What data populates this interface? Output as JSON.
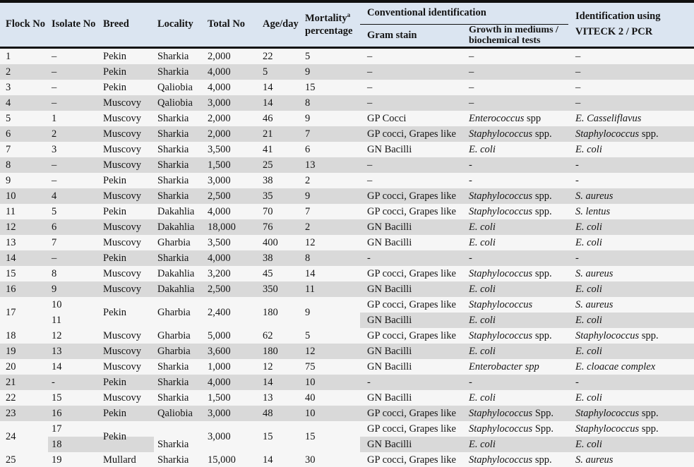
{
  "colors": {
    "header_bg": "#dbe5f1",
    "stripe_gray": "#d9d9d9",
    "row_bg": "#f6f6f6",
    "rule_black": "#101010"
  },
  "header": {
    "flock": "Flock No",
    "isolate": "Isolate No",
    "breed": "Breed",
    "locality": "Locality",
    "total": "Total No",
    "age": "Age/day",
    "mortality_word": "Mortality",
    "mortality_sup": "a",
    "mortality_line2": "percentage",
    "conventional": "Conventional identification",
    "gram": "Gram stain",
    "growth_line1": "Growth in mediums /",
    "growth_line2": "biochemical tests",
    "viteck_line1": "Identification using",
    "viteck_line2": "VITECK 2 / PCR"
  },
  "table": {
    "rows": [
      {
        "flock": "1",
        "isolate": "–",
        "breed": "Pekin",
        "locality": "Sharkia",
        "total": "2,000",
        "age": "22",
        "mortality": "5",
        "gram": "–",
        "growth": {
          "n": "–"
        },
        "viteck": {
          "n": "–"
        },
        "shade": false
      },
      {
        "flock": "2",
        "isolate": "–",
        "breed": "Pekin",
        "locality": "Sharkia",
        "total": "4,000",
        "age": "5",
        "mortality": "9",
        "gram": "–",
        "growth": {
          "n": "–"
        },
        "viteck": {
          "n": "–"
        },
        "shade": true
      },
      {
        "flock": "3",
        "isolate": "–",
        "breed": "Pekin",
        "locality": "Qaliobia",
        "total": "4,000",
        "age": "14",
        "mortality": "15",
        "gram": "–",
        "growth": {
          "n": "–"
        },
        "viteck": {
          "n": "–"
        },
        "shade": false
      },
      {
        "flock": "4",
        "isolate": "–",
        "breed": "Muscovy",
        "locality": "Qaliobia",
        "total": "3,000",
        "age": "14",
        "mortality": "8",
        "gram": "–",
        "growth": {
          "n": "–"
        },
        "viteck": {
          "n": "–"
        },
        "shade": true
      },
      {
        "flock": "5",
        "isolate": "1",
        "breed": "Muscovy",
        "locality": "Sharkia",
        "total": "2,000",
        "age": "46",
        "mortality": "9",
        "gram": "GP Cocci",
        "growth": {
          "i": "Enterococcus",
          "n": " spp"
        },
        "viteck": {
          "i": "E. Casseliflavus"
        },
        "shade": false
      },
      {
        "flock": "6",
        "isolate": "2",
        "breed": "Muscovy",
        "locality": "Sharkia",
        "total": "2,000",
        "age": "21",
        "mortality": "7",
        "gram": "GP cocci, Grapes like",
        "growth": {
          "i": "Staphylococcus",
          "n": " spp."
        },
        "viteck": {
          "i": "Staphylococcus",
          "n": " spp."
        },
        "shade": true
      },
      {
        "flock": "7",
        "isolate": "3",
        "breed": "Muscovy",
        "locality": "Sharkia",
        "total": "3,500",
        "age": "41",
        "mortality": "6",
        "gram": "GN Bacilli",
        "growth": {
          "i": "E. coli"
        },
        "viteck": {
          "i": "E. coli"
        },
        "shade": false
      },
      {
        "flock": "8",
        "isolate": "–",
        "breed": "Muscovy",
        "locality": "Sharkia",
        "total": "1,500",
        "age": "25",
        "mortality": "13",
        "gram": "–",
        "growth": {
          "n": "-"
        },
        "viteck": {
          "n": "-"
        },
        "shade": true
      },
      {
        "flock": "9",
        "isolate": "–",
        "breed": "Pekin",
        "locality": "Sharkia",
        "total": "3,000",
        "age": "38",
        "mortality": "2",
        "gram": "–",
        "growth": {
          "n": "-"
        },
        "viteck": {
          "n": "-"
        },
        "shade": false
      },
      {
        "flock": "10",
        "isolate": "4",
        "breed": "Muscovy",
        "locality": "Sharkia",
        "total": "2,500",
        "age": "35",
        "mortality": "9",
        "gram": "GP cocci, Grapes like",
        "growth": {
          "i": "Staphylococcus",
          "n": " spp."
        },
        "viteck": {
          "i": "S. aureus"
        },
        "shade": true
      },
      {
        "flock": "11",
        "isolate": "5",
        "breed": "Pekin",
        "locality": "Dakahlia",
        "total": "4,000",
        "age": "70",
        "mortality": "7",
        "gram": "GP cocci, Grapes like",
        "growth": {
          "i": "Staphylococcus",
          "n": " spp."
        },
        "viteck": {
          "i": "S. lentus"
        },
        "shade": false
      },
      {
        "flock": "12",
        "isolate": "6",
        "breed": "Muscovy",
        "locality": "Dakahlia",
        "total": "18,000",
        "age": "76",
        "mortality": "2",
        "gram": "GN Bacilli",
        "growth": {
          "i": "E. coli"
        },
        "viteck": {
          "i": "E. coli"
        },
        "shade": true
      },
      {
        "flock": "13",
        "isolate": "7",
        "breed": "Muscovy",
        "locality": "Gharbia",
        "total": "3,500",
        "age": "400",
        "mortality": "12",
        "gram": "GN Bacilli",
        "growth": {
          "i": "E. coli"
        },
        "viteck": {
          "i": "E. coli"
        },
        "shade": false
      },
      {
        "flock": "14",
        "isolate": "–",
        "breed": "Pekin",
        "locality": "Sharkia",
        "total": "4,000",
        "age": "38",
        "mortality": "8",
        "gram": "-",
        "growth": {
          "n": "-"
        },
        "viteck": {
          "n": "-"
        },
        "shade": true
      },
      {
        "flock": "15",
        "isolate": "8",
        "breed": "Muscovy",
        "locality": "Dakahlia",
        "total": "3,200",
        "age": "45",
        "mortality": "14",
        "gram": "GP cocci, Grapes like",
        "growth": {
          "i": "Staphylococcus",
          "n": " spp."
        },
        "viteck": {
          "i": "S. aureus"
        },
        "shade": false
      },
      {
        "flock": "16",
        "isolate": "9",
        "breed": "Muscovy",
        "locality": "Dakahlia",
        "total": "2,500",
        "age": "350",
        "mortality": "11",
        "gram": "GN Bacilli",
        "growth": {
          "i": "E. coli"
        },
        "viteck": {
          "i": "E. coli"
        },
        "shade": true
      },
      {
        "flock": "17",
        "breed": "Pekin",
        "locality": "Gharbia",
        "total": "2,400",
        "age": "180",
        "mortality": "9",
        "breed_mode": "span",
        "locality_mode": "span",
        "sub": [
          {
            "isolate": "10",
            "gram": "GP cocci, Grapes like",
            "growth": {
              "i": "Staphylococcus"
            },
            "viteck": {
              "i": "S. aureus"
            },
            "shade": false,
            "shade_isolate": false
          },
          {
            "isolate": "11",
            "gram": "GN Bacilli",
            "growth": {
              "i": "E. coli"
            },
            "viteck": {
              "i": "E. coli"
            },
            "shade": true,
            "shade_isolate": false
          }
        ]
      },
      {
        "flock": "18",
        "isolate": "12",
        "breed": "Muscovy",
        "locality": "Gharbia",
        "total": "5,000",
        "age": "62",
        "mortality": "5",
        "gram": "GP cocci, Grapes like",
        "growth": {
          "i": "Staphylococcus",
          "n": " spp."
        },
        "viteck": {
          "i": "Staphylococcus",
          "n": " spp."
        },
        "shade": false
      },
      {
        "flock": "19",
        "isolate": "13",
        "breed": "Muscovy",
        "locality": "Gharbia",
        "total": "3,600",
        "age": "180",
        "mortality": "12",
        "gram": "GN Bacilli",
        "growth": {
          "i": "E. coli"
        },
        "viteck": {
          "i": "E. coli"
        },
        "shade": true
      },
      {
        "flock": "20",
        "isolate": "14",
        "breed": "Muscovy",
        "locality": "Sharkia",
        "total": "1,000",
        "age": "12",
        "mortality": "75",
        "gram": "GN Bacilli",
        "growth": {
          "i": "Enterobacter spp"
        },
        "viteck": {
          "i": "E. cloacae complex"
        },
        "shade": false
      },
      {
        "flock": "21",
        "isolate": "-",
        "breed": "Pekin",
        "locality": "Sharkia",
        "total": "4,000",
        "age": "14",
        "mortality": "10",
        "gram": "-",
        "growth": {
          "n": "-"
        },
        "viteck": {
          "n": "-"
        },
        "shade": true
      },
      {
        "flock": "22",
        "isolate": "15",
        "breed": "Muscovy",
        "locality": "Sharkia",
        "total": "1,500",
        "age": "13",
        "mortality": "40",
        "gram": "GN Bacilli",
        "growth": {
          "i": "E. coli"
        },
        "viteck": {
          "i": "E. coli"
        },
        "shade": false
      },
      {
        "flock": "23",
        "isolate": "16",
        "breed": "Pekin",
        "locality": "Qaliobia",
        "total": "3,000",
        "age": "48",
        "mortality": "10",
        "gram": "GP cocci, Grapes like",
        "growth": {
          "i": "Staphylococcus",
          "n": " Spp."
        },
        "viteck": {
          "i": "Staphylococcus",
          "n": " spp."
        },
        "shade": true
      },
      {
        "flock": "24",
        "breed": "Pekin",
        "locality": "Sharkia",
        "total": "3,000",
        "age": "15",
        "mortality": "15",
        "breed_mode": "split",
        "locality_mode": "second",
        "sub": [
          {
            "isolate": "17",
            "gram": "GP cocci, Grapes like",
            "growth": {
              "i": "Staphylococcus",
              "n": " Spp."
            },
            "viteck": {
              "i": "Staphylococcus",
              "n": " spp."
            },
            "shade": false,
            "shade_isolate": false
          },
          {
            "isolate": "18",
            "gram": "GN Bacilli",
            "growth": {
              "i": "E. coli"
            },
            "viteck": {
              "i": "E. coli"
            },
            "shade": true,
            "shade_isolate": true
          }
        ]
      },
      {
        "flock": "25",
        "isolate": "19",
        "breed": "Mullard",
        "locality": "Sharkia",
        "total": "15,000",
        "age": "14",
        "mortality": "30",
        "gram": "GP cocci, Grapes like",
        "growth": {
          "i": "Staphylococcus",
          "n": " spp."
        },
        "viteck": {
          "i": "S. aureus"
        },
        "shade": false
      }
    ]
  }
}
